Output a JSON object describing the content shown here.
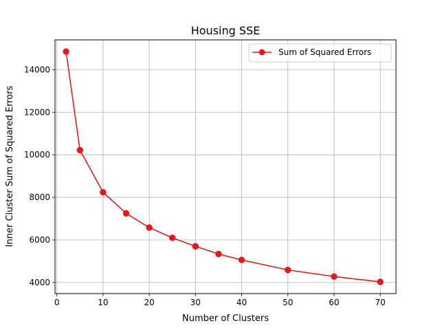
{
  "chart_data": {
    "type": "line",
    "title": "Housing SSE",
    "xlabel": "Number of Clusters",
    "ylabel": "Inner Cluster Sum of Squared Errors",
    "x": [
      2,
      5,
      10,
      15,
      20,
      25,
      30,
      35,
      40,
      50,
      60,
      70
    ],
    "series": [
      {
        "name": "Sum of Squared Errors",
        "values": [
          14850,
          10220,
          8240,
          7250,
          6580,
          6100,
          5700,
          5340,
          5060,
          4590,
          4280,
          4030
        ],
        "color": "#e41a1c"
      }
    ],
    "xlim": [
      -0.4,
      73.4
    ],
    "ylim": [
      3480,
      15400
    ],
    "xticks": [
      0,
      10,
      20,
      30,
      40,
      50,
      60,
      70
    ],
    "yticks": [
      4000,
      6000,
      8000,
      10000,
      12000,
      14000
    ],
    "grid": true,
    "legend_position": "upper right",
    "marker": "circle"
  }
}
